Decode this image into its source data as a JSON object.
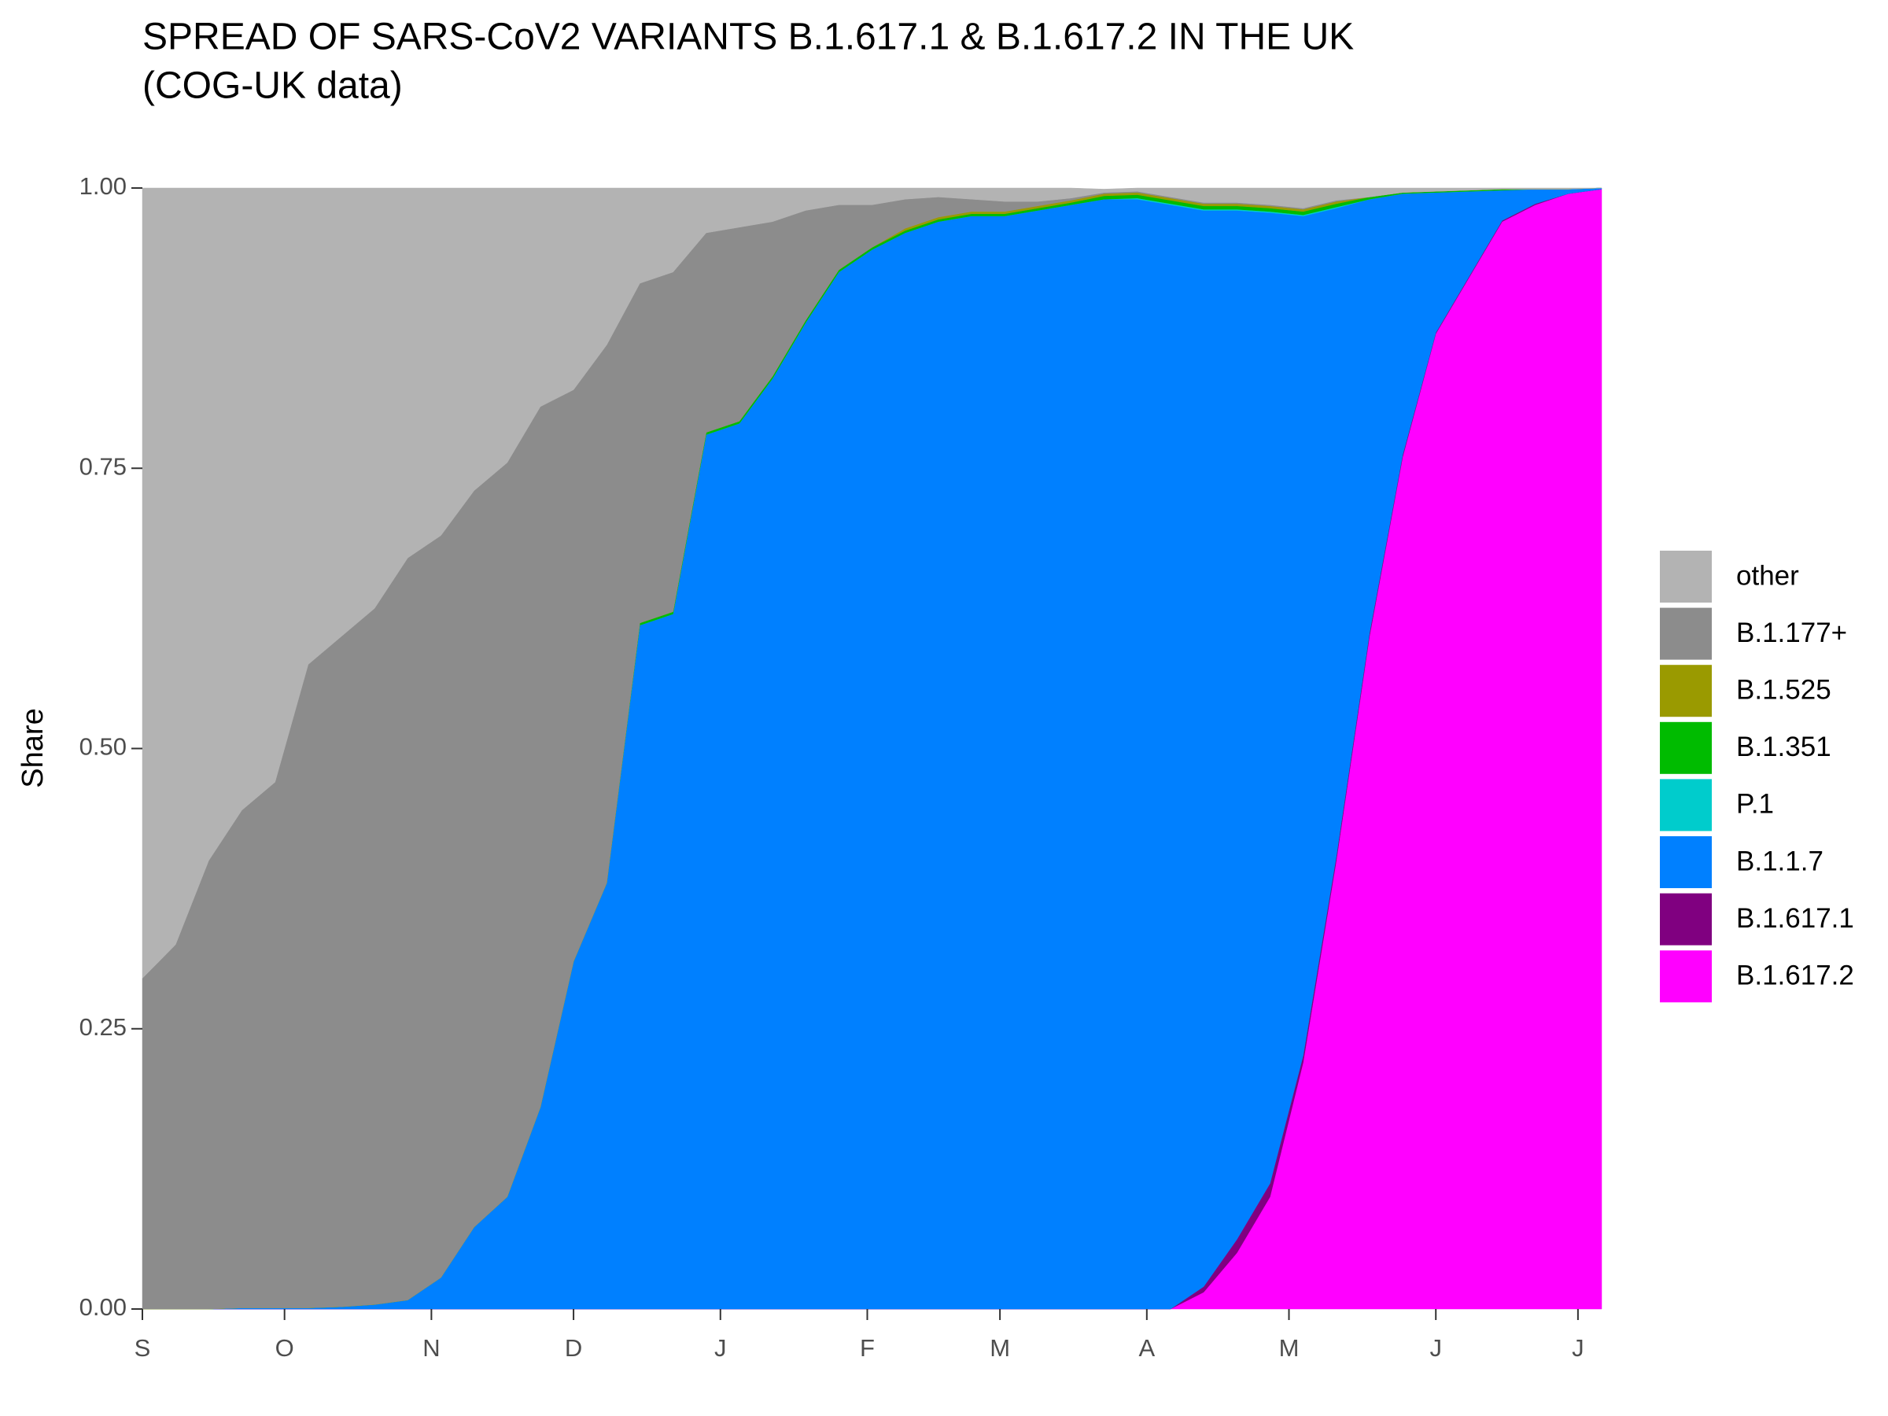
{
  "chart_data": {
    "type": "stacked-area",
    "title": [
      "SPREAD OF SARS-CoV2 VARIANTS B.1.617.1 & B.1.617.2 IN THE UK",
      "(COG-UK data)"
    ],
    "y_label": "Share",
    "x": [
      0,
      7,
      14,
      21,
      28,
      35,
      42,
      49,
      56,
      63,
      70,
      77,
      84,
      91,
      98,
      105,
      112,
      119,
      126,
      133,
      140,
      147,
      154,
      161,
      168,
      175,
      182,
      189,
      196,
      203,
      210,
      217,
      224,
      231,
      238,
      245,
      252,
      259,
      266,
      273,
      280,
      287,
      294,
      301,
      308
    ],
    "xlim": [
      0,
      308
    ],
    "xticks": [
      {
        "value": 0,
        "label": "S"
      },
      {
        "value": 30,
        "label": "O"
      },
      {
        "value": 61,
        "label": "N"
      },
      {
        "value": 91,
        "label": "D"
      },
      {
        "value": 122,
        "label": "J"
      },
      {
        "value": 153,
        "label": "F"
      },
      {
        "value": 181,
        "label": "M"
      },
      {
        "value": 212,
        "label": "A"
      },
      {
        "value": 242,
        "label": "M"
      },
      {
        "value": 273,
        "label": "J"
      },
      {
        "value": 303,
        "label": "J"
      }
    ],
    "ylim": [
      0,
      1
    ],
    "yticks": [
      {
        "value": 0,
        "label": "0.00"
      },
      {
        "value": 0.25,
        "label": "0.25"
      },
      {
        "value": 0.5,
        "label": "0.50"
      },
      {
        "value": 0.75,
        "label": "0.75"
      },
      {
        "value": 1,
        "label": "1.00"
      }
    ],
    "series": [
      {
        "name": "B.1.617.2",
        "color": "#ff00ff",
        "values": [
          0,
          0,
          0,
          0,
          0,
          0,
          0,
          0,
          0,
          0,
          0,
          0,
          0,
          0,
          0,
          0,
          0,
          0,
          0,
          0,
          0,
          0,
          0,
          0,
          0,
          0,
          0,
          0,
          0,
          0,
          0,
          0,
          0.015,
          0.05,
          0.1,
          0.22,
          0.4,
          0.6,
          0.76,
          0.87,
          0.92,
          0.97,
          0.985,
          0.995,
          0.999
        ]
      },
      {
        "name": "B.1.617.1",
        "color": "#800080",
        "values": [
          0,
          0,
          0,
          0,
          0,
          0,
          0,
          0,
          0,
          0,
          0,
          0,
          0,
          0,
          0,
          0,
          0,
          0,
          0,
          0,
          0,
          0,
          0,
          0,
          0,
          0,
          0,
          0,
          0,
          0,
          0,
          0,
          0.005,
          0.012,
          0.012,
          0.006,
          0.004,
          0.003,
          0.002,
          0.001,
          0.001,
          0.001,
          0.001,
          0,
          0
        ]
      },
      {
        "name": "B.1.1.7",
        "color": "#0080ff",
        "values": [
          0,
          0,
          0,
          0.001,
          0.001,
          0.001,
          0.002,
          0.004,
          0.008,
          0.028,
          0.073,
          0.1,
          0.18,
          0.31,
          0.38,
          0.61,
          0.62,
          0.78,
          0.79,
          0.83,
          0.88,
          0.925,
          0.945,
          0.96,
          0.97,
          0.975,
          0.975,
          0.98,
          0.985,
          0.99,
          0.99,
          0.985,
          0.96,
          0.918,
          0.866,
          0.749,
          0.578,
          0.387,
          0.233,
          0.125,
          0.076,
          0.027,
          0.013,
          0.004,
          0.001
        ]
      },
      {
        "name": "P.1",
        "color": "#00cccc",
        "values": [
          0,
          0,
          0,
          0,
          0,
          0,
          0,
          0,
          0,
          0,
          0,
          0,
          0,
          0,
          0,
          0,
          0,
          0,
          0,
          0,
          0,
          0,
          0,
          0,
          0,
          0,
          0,
          0,
          0,
          0,
          0.001,
          0.001,
          0.001,
          0.001,
          0.001,
          0.001,
          0.001,
          0,
          0,
          0,
          0,
          0,
          0,
          0,
          0
        ]
      },
      {
        "name": "B.1.351",
        "color": "#00bb00",
        "values": [
          0,
          0,
          0,
          0,
          0,
          0,
          0,
          0,
          0,
          0,
          0,
          0,
          0,
          0,
          0,
          0.002,
          0.002,
          0.002,
          0.002,
          0.002,
          0.002,
          0.002,
          0.002,
          0.002,
          0.002,
          0.002,
          0.002,
          0.002,
          0.002,
          0.003,
          0.003,
          0.003,
          0.003,
          0.003,
          0.003,
          0.003,
          0.003,
          0.002,
          0.001,
          0.001,
          0.001,
          0.001,
          0,
          0,
          0
        ]
      },
      {
        "name": "B.1.525",
        "color": "#9a9a00",
        "values": [
          0,
          0,
          0,
          0,
          0,
          0,
          0,
          0,
          0,
          0,
          0,
          0,
          0,
          0,
          0,
          0,
          0,
          0,
          0,
          0,
          0,
          0,
          0,
          0.002,
          0.002,
          0.002,
          0.002,
          0.002,
          0.002,
          0.002,
          0.002,
          0.002,
          0.002,
          0.002,
          0.002,
          0.002,
          0.002,
          0,
          0,
          0,
          0,
          0,
          0,
          0,
          0
        ]
      },
      {
        "name": "B.1.177+",
        "color": "#8c8c8c",
        "values": [
          0.295,
          0.325,
          0.4,
          0.444,
          0.469,
          0.574,
          0.598,
          0.621,
          0.662,
          0.662,
          0.657,
          0.655,
          0.625,
          0.51,
          0.48,
          0.303,
          0.303,
          0.178,
          0.173,
          0.138,
          0.098,
          0.058,
          0.038,
          0.026,
          0.018,
          0.011,
          0.009,
          0.004,
          0.002,
          0.001,
          0.001,
          0.001,
          0.001,
          0.001,
          0.001,
          0.001,
          0.001,
          0,
          0,
          0,
          0,
          0,
          0,
          0,
          0
        ]
      },
      {
        "name": "other",
        "color": "#b3b3b3",
        "values": [
          0.705,
          0.675,
          0.6,
          0.555,
          0.53,
          0.425,
          0.4,
          0.375,
          0.33,
          0.31,
          0.27,
          0.245,
          0.195,
          0.18,
          0.14,
          0.085,
          0.075,
          0.04,
          0.035,
          0.03,
          0.02,
          0.015,
          0.015,
          0.01,
          0.008,
          0.01,
          0.012,
          0.012,
          0.009,
          0.003,
          0.003,
          0.008,
          0.013,
          0.013,
          0.015,
          0.018,
          0.011,
          0.008,
          0.004,
          0.003,
          0.002,
          0.001,
          0.001,
          0.001,
          0
        ]
      }
    ]
  }
}
